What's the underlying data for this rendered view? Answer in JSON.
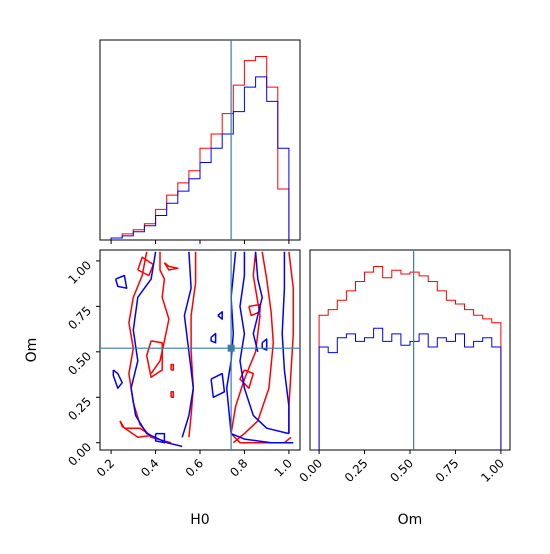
{
  "chart_data": {
    "type": "corner",
    "parameters": [
      "H0",
      "Om"
    ],
    "truth": {
      "H0": 0.74,
      "Om": 0.52
    },
    "colors": {
      "series_a": "#ff0000",
      "series_b": "#0000ff",
      "truth": "#3b7ca8"
    },
    "grid": false,
    "legend": "none",
    "panels": {
      "h0_hist": {
        "xlim": [
          0.15,
          1.05
        ],
        "bin_edges": [
          0.2,
          0.25,
          0.3,
          0.35,
          0.4,
          0.45,
          0.5,
          0.55,
          0.6,
          0.65,
          0.7,
          0.75,
          0.8,
          0.85,
          0.9,
          0.95,
          1.0
        ],
        "series": [
          {
            "values": [
              1,
              3,
              5,
              8,
              15,
              22,
              28,
              34,
              45,
              52,
              62,
              76,
              88,
              90,
              75,
              25
            ]
          },
          {
            "values": [
              1,
              2,
              4,
              7,
              12,
              18,
              24,
              30,
              38,
              45,
              52,
              63,
              75,
              80,
              68,
              45
            ]
          }
        ]
      },
      "om_hist": {
        "xlim": [
          -0.05,
          1.05
        ],
        "bin_edges": [
          0.0,
          0.05,
          0.1,
          0.15,
          0.2,
          0.25,
          0.3,
          0.35,
          0.4,
          0.45,
          0.5,
          0.55,
          0.6,
          0.65,
          0.7,
          0.75,
          0.8,
          0.85,
          0.9,
          0.95,
          1.0
        ],
        "series": [
          {
            "values": [
              72,
              75,
              80,
              85,
              90,
              95,
              98,
              92,
              96,
              94,
              95,
              93,
              90,
              85,
              80,
              78,
              75,
              72,
              70,
              68
            ]
          },
          {
            "values": [
              55,
              52,
              60,
              62,
              58,
              60,
              65,
              58,
              62,
              56,
              58,
              62,
              55,
              60,
              58,
              62,
              55,
              58,
              60,
              55
            ]
          }
        ]
      },
      "joint": {
        "xlabel": "H0",
        "ylabel": "Om",
        "xlim": [
          0.15,
          1.05
        ],
        "ylim": [
          -0.04,
          1.06
        ],
        "xticks": [
          0.2,
          0.4,
          0.6,
          0.8,
          1.0
        ],
        "xtick_labels": [
          "0.2",
          "0.4",
          "0.6",
          "0.8",
          "1.0"
        ],
        "yticks": [
          0.0,
          0.25,
          0.5,
          0.75,
          1.0
        ],
        "ytick_labels": [
          "0.00",
          "0.25",
          "0.50",
          "0.75",
          "1.00"
        ],
        "contours": [
          {
            "series": 0,
            "points": [
              [
                0.36,
                1.05
              ],
              [
                0.34,
                0.92
              ],
              [
                0.3,
                0.8
              ],
              [
                0.28,
                0.66
              ],
              [
                0.3,
                0.52
              ],
              [
                0.28,
                0.38
              ],
              [
                0.3,
                0.22
              ],
              [
                0.33,
                0.1
              ],
              [
                0.38,
                0.03
              ],
              [
                0.47,
                0.0
              ]
            ]
          },
          {
            "series": 0,
            "points": [
              [
                0.58,
                1.05
              ],
              [
                0.58,
                0.88
              ],
              [
                0.56,
                0.7
              ],
              [
                0.56,
                0.5
              ],
              [
                0.57,
                0.3
              ],
              [
                0.56,
                0.15
              ],
              [
                0.55,
                0.03
              ]
            ]
          },
          {
            "series": 0,
            "points": [
              [
                0.42,
                1.05
              ],
              [
                0.42,
                0.95
              ],
              [
                0.44,
                0.9
              ],
              [
                0.43,
                0.8
              ],
              [
                0.46,
                0.68
              ],
              [
                0.44,
                0.56
              ],
              [
                0.42,
                0.45
              ],
              [
                0.38,
                0.38
              ]
            ]
          },
          {
            "series": 0,
            "points": [
              [
                0.24,
                0.12
              ],
              [
                0.26,
                0.08
              ],
              [
                0.33,
                0.08
              ],
              [
                0.38,
                0.04
              ],
              [
                0.32,
                0.03
              ],
              [
                0.25,
                0.09
              ],
              [
                0.24,
                0.12
              ]
            ]
          },
          {
            "series": 0,
            "points": [
              [
                0.38,
                0.56
              ],
              [
                0.43,
                0.55
              ],
              [
                0.43,
                0.4
              ],
              [
                0.38,
                0.36
              ],
              [
                0.36,
                0.48
              ],
              [
                0.38,
                0.56
              ]
            ]
          },
          {
            "series": 0,
            "points": [
              [
                0.47,
                0.25
              ],
              [
                0.48,
                0.25
              ],
              [
                0.48,
                0.28
              ],
              [
                0.47,
                0.28
              ],
              [
                0.47,
                0.25
              ]
            ]
          },
          {
            "series": 0,
            "points": [
              [
                0.47,
                0.4
              ],
              [
                0.48,
                0.4
              ],
              [
                0.48,
                0.43
              ],
              [
                0.47,
                0.43
              ],
              [
                0.47,
                0.4
              ]
            ]
          },
          {
            "series": 0,
            "points": [
              [
                0.44,
                0.99
              ],
              [
                0.46,
                0.97
              ],
              [
                0.5,
                0.96
              ],
              [
                0.46,
                0.95
              ],
              [
                0.44,
                0.99
              ]
            ]
          },
          {
            "series": 0,
            "points": [
              [
                0.32,
                0.95
              ],
              [
                0.37,
                0.92
              ],
              [
                0.39,
                0.98
              ],
              [
                0.34,
                1.02
              ],
              [
                0.32,
                0.95
              ]
            ]
          },
          {
            "series": 0,
            "points": [
              [
                0.74,
                0.05
              ],
              [
                0.78,
                0.0
              ],
              [
                0.86,
                0.0
              ],
              [
                0.98,
                0.0
              ],
              [
                1.01,
                0.03
              ]
            ]
          },
          {
            "series": 0,
            "points": [
              [
                0.85,
                1.05
              ],
              [
                0.84,
                0.92
              ],
              [
                0.87,
                0.7
              ],
              [
                0.85,
                0.5
              ],
              [
                0.8,
                0.35
              ],
              [
                0.76,
                0.2
              ],
              [
                0.74,
                0.05
              ]
            ]
          },
          {
            "series": 0,
            "points": [
              [
                0.88,
                1.05
              ],
              [
                0.9,
                0.9
              ],
              [
                0.92,
                0.72
              ],
              [
                0.93,
                0.55
              ],
              [
                0.91,
                0.3
              ],
              [
                0.86,
                0.12
              ],
              [
                0.8,
                0.05
              ],
              [
                0.75,
                0.0
              ]
            ]
          },
          {
            "series": 0,
            "points": [
              [
                1.0,
                1.05
              ],
              [
                1.02,
                0.85
              ],
              [
                1.02,
                0.6
              ],
              [
                1.01,
                0.4
              ],
              [
                1.0,
                0.2
              ],
              [
                1.0,
                0.05
              ]
            ]
          },
          {
            "series": 0,
            "points": [
              [
                0.82,
                0.75
              ],
              [
                0.87,
                0.76
              ],
              [
                0.87,
                0.72
              ],
              [
                0.83,
                0.7
              ],
              [
                0.82,
                0.75
              ]
            ]
          },
          {
            "series": 0,
            "points": [
              [
                0.8,
                0.4
              ],
              [
                0.84,
                0.38
              ],
              [
                0.82,
                0.3
              ],
              [
                0.78,
                0.35
              ],
              [
                0.8,
                0.4
              ]
            ]
          },
          {
            "series": 1,
            "points": [
              [
                0.4,
                1.05
              ],
              [
                0.38,
                0.9
              ],
              [
                0.32,
                0.8
              ],
              [
                0.3,
                0.62
              ],
              [
                0.32,
                0.45
              ],
              [
                0.29,
                0.3
              ],
              [
                0.31,
                0.15
              ],
              [
                0.36,
                0.05
              ],
              [
                0.45,
                0.0
              ],
              [
                0.52,
                -0.02
              ]
            ]
          },
          {
            "series": 1,
            "points": [
              [
                0.55,
                1.05
              ],
              [
                0.56,
                0.85
              ],
              [
                0.53,
                0.7
              ],
              [
                0.55,
                0.5
              ],
              [
                0.57,
                0.3
              ],
              [
                0.55,
                0.15
              ],
              [
                0.52,
                0.03
              ]
            ]
          },
          {
            "series": 1,
            "points": [
              [
                0.21,
                0.4
              ],
              [
                0.23,
                0.38
              ],
              [
                0.25,
                0.33
              ],
              [
                0.23,
                0.3
              ],
              [
                0.21,
                0.37
              ],
              [
                0.21,
                0.4
              ]
            ]
          },
          {
            "series": 1,
            "points": [
              [
                0.22,
                0.9
              ],
              [
                0.26,
                0.92
              ],
              [
                0.27,
                0.85
              ],
              [
                0.23,
                0.86
              ],
              [
                0.22,
                0.9
              ]
            ]
          },
          {
            "series": 1,
            "points": [
              [
                0.4,
                0.05
              ],
              [
                0.44,
                0.05
              ],
              [
                0.44,
                0.0
              ],
              [
                0.4,
                0.01
              ],
              [
                0.4,
                0.05
              ]
            ]
          },
          {
            "series": 1,
            "points": [
              [
                0.74,
                0.05
              ],
              [
                0.72,
                0.3
              ],
              [
                0.74,
                0.45
              ],
              [
                0.75,
                0.6
              ],
              [
                0.74,
                0.8
              ],
              [
                0.76,
                1.05
              ]
            ]
          },
          {
            "series": 1,
            "points": [
              [
                0.74,
                0.05
              ],
              [
                0.8,
                0.02
              ],
              [
                0.92,
                0.0
              ],
              [
                1.02,
                0.0
              ]
            ]
          },
          {
            "series": 1,
            "points": [
              [
                0.8,
                1.05
              ],
              [
                0.8,
                0.92
              ],
              [
                0.78,
                0.75
              ],
              [
                0.8,
                0.6
              ],
              [
                0.78,
                0.45
              ],
              [
                0.8,
                0.3
              ],
              [
                0.84,
                0.15
              ],
              [
                0.9,
                0.08
              ],
              [
                1.0,
                0.05
              ]
            ]
          },
          {
            "series": 1,
            "points": [
              [
                0.98,
                1.05
              ],
              [
                0.98,
                0.85
              ],
              [
                0.97,
                0.6
              ],
              [
                0.98,
                0.4
              ],
              [
                1.0,
                0.2
              ],
              [
                1.0,
                0.05
              ]
            ]
          },
          {
            "series": 1,
            "points": [
              [
                0.85,
                1.05
              ],
              [
                0.86,
                0.9
              ],
              [
                0.88,
                0.8
              ],
              [
                0.86,
                0.7
              ],
              [
                0.84,
                0.6
              ],
              [
                0.86,
                0.5
              ]
            ]
          },
          {
            "series": 1,
            "points": [
              [
                0.68,
                0.7
              ],
              [
                0.7,
                0.72
              ],
              [
                0.7,
                0.68
              ],
              [
                0.68,
                0.7
              ]
            ]
          },
          {
            "series": 1,
            "points": [
              [
                0.65,
                0.35
              ],
              [
                0.7,
                0.38
              ],
              [
                0.71,
                0.28
              ],
              [
                0.66,
                0.25
              ],
              [
                0.65,
                0.35
              ]
            ]
          },
          {
            "series": 1,
            "points": [
              [
                0.65,
                0.58
              ],
              [
                0.67,
                0.6
              ],
              [
                0.67,
                0.55
              ],
              [
                0.65,
                0.56
              ],
              [
                0.65,
                0.58
              ]
            ]
          },
          {
            "series": 1,
            "points": [
              [
                0.88,
                0.55
              ],
              [
                0.9,
                0.57
              ],
              [
                0.9,
                0.51
              ],
              [
                0.88,
                0.52
              ],
              [
                0.88,
                0.55
              ]
            ]
          }
        ]
      },
      "om_axis": {
        "xlabel": "Om",
        "xticks": [
          0.0,
          0.25,
          0.5,
          0.75,
          1.0
        ],
        "xtick_labels": [
          "0.00",
          "0.25",
          "0.50",
          "0.75",
          "1.00"
        ]
      }
    }
  }
}
